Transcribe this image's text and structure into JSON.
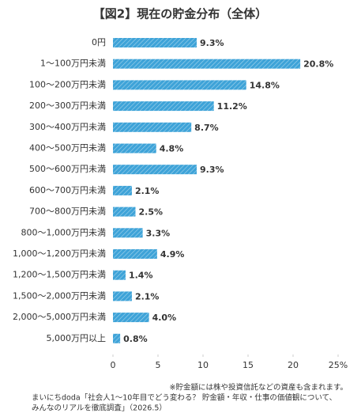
{
  "chart_data": {
    "type": "bar",
    "orientation": "horizontal",
    "title": "【図2】現在の貯金分布（全体）",
    "categories": [
      "0円",
      "1〜100万円未満",
      "100〜200万円未満",
      "200〜300万円未満",
      "300〜400万円未満",
      "400〜500万円未満",
      "500〜600万円未満",
      "600〜700万円未満",
      "700〜800万円未満",
      "800〜1,000万円未満",
      "1,000〜1,200万円未満",
      "1,200〜1,500万円未満",
      "1,500〜2,000万円未満",
      "2,000〜5,000万円未満",
      "5,000万円以上"
    ],
    "values": [
      9.3,
      20.8,
      14.8,
      11.2,
      8.7,
      4.8,
      9.3,
      2.1,
      2.5,
      3.3,
      4.9,
      1.4,
      2.1,
      4.0,
      0.8
    ],
    "value_labels": [
      "9.3%",
      "20.8%",
      "14.8%",
      "11.2%",
      "8.7%",
      "4.8%",
      "9.3%",
      "2.1%",
      "2.5%",
      "3.3%",
      "4.9%",
      "1.4%",
      "2.1%",
      "4.0%",
      "0.8%"
    ],
    "color": "#3ea3d8",
    "xlim": [
      0,
      25
    ],
    "xticks": [
      0,
      5,
      10,
      15,
      20,
      {
        "value": 25,
        "label": "25%"
      }
    ],
    "annotations": [
      "※貯金額には株や投資信託などの資産も含まれます。",
      "まいにちdoda「社会人1〜10年目でどう変わる？ 貯金額・年収・仕事の価値観について、",
      "みんなのリアルを徹底調査」（2026.5）"
    ]
  }
}
